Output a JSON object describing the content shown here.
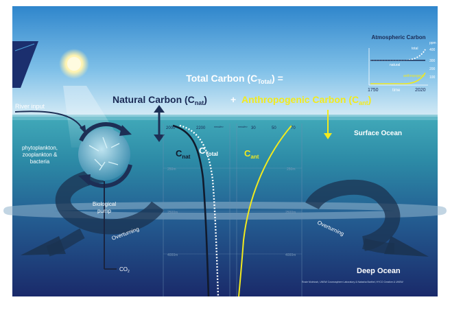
{
  "title": {
    "line1_prefix": "Total Carbon (C",
    "line1_sub": "Total",
    "line1_suffix": ") =",
    "natural_prefix": "Natural Carbon (C",
    "natural_sub": "nat",
    "natural_suffix": ")",
    "plus": "+",
    "anthro_prefix": "Anthropogenic Carbon (C",
    "anthro_sub": "ant",
    "anthro_suffix": ")"
  },
  "inset": {
    "title": "Atmospheric Carbon",
    "unit": "ppm",
    "label_total": "total",
    "label_natural": "natural",
    "label_anthropogenic": "anthropogenic",
    "y_ticks": [
      "400",
      "300",
      "200",
      "100"
    ],
    "x_start": "1750",
    "x_mid": "time",
    "x_end": "2020"
  },
  "labels": {
    "river_input": "River input",
    "plankton": "phytoplankton,\nzooplankton &\nbacteria",
    "biological_pump": "Biological\npump",
    "overturning_left": "Overturning",
    "overturning_right": "Overturning",
    "co2": "CO",
    "co2_sub": "2",
    "surface_ocean": "Surface Ocean",
    "deep_ocean": "Deep Ocean",
    "credit": "Rosie McIntosh, UNSW Cosmosphere Laboratory & Natasha Barthel, HYCO Creative & UNSW"
  },
  "profile_left": {
    "ticks": [
      "2000",
      "2200"
    ],
    "unit": "mmol/m³",
    "depths": [
      "250m",
      "2500m",
      "4000m"
    ],
    "label_nat": "C",
    "label_nat_sub": "nat",
    "label_total": "C",
    "label_total_sub": "Total"
  },
  "profile_right": {
    "ticks": [
      "30",
      "50",
      "70"
    ],
    "unit": "mmol/m³",
    "depths": [
      "250m",
      "2500m",
      "4000m"
    ],
    "label_ant": "C",
    "label_ant_sub": "ant"
  },
  "colors": {
    "sky_top": "#3a8fd0",
    "sky_bottom": "#cfe6f3",
    "ocean_top": "#3aa3b4",
    "ocean_deep": "#1b2f6e",
    "anthropogenic": "#f2ea1e",
    "natural_text": "#1a2a55",
    "arrow": "#22334f"
  }
}
